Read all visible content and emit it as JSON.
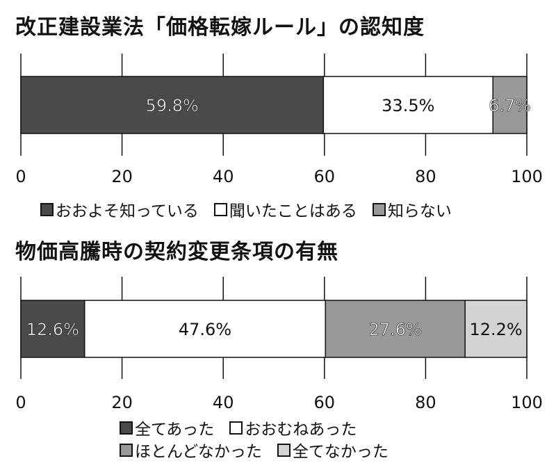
{
  "chart_data": [
    {
      "type": "bar",
      "stacked": "horizontal-100%",
      "title": "改正建設業法「価格転嫁ルール」の認知度",
      "xlim": [
        0,
        100
      ],
      "xticks": [
        "0",
        "20",
        "40",
        "60",
        "80",
        "100"
      ],
      "grid": true,
      "legend_position": "bottom",
      "series": [
        {
          "name": "おおよそ知っている",
          "value": 59.8,
          "label": "59.8%",
          "color": "#4a4a4a",
          "label_color": "#ffffff"
        },
        {
          "name": "聞いたことはある",
          "value": 33.5,
          "label": "33.5%",
          "color": "#ffffff",
          "label_color": "#111111"
        },
        {
          "name": "知らない",
          "value": 6.7,
          "label": "6.7%",
          "color": "#999999",
          "label_color": "#ffffff"
        }
      ]
    },
    {
      "type": "bar",
      "stacked": "horizontal-100%",
      "title": "物価高騰時の契約変更条項の有無",
      "xlim": [
        0,
        100
      ],
      "xticks": [
        "0",
        "20",
        "40",
        "60",
        "80",
        "100"
      ],
      "grid": true,
      "legend_position": "bottom",
      "series": [
        {
          "name": "全てあった",
          "value": 12.6,
          "label": "12.6%",
          "color": "#4a4a4a",
          "label_color": "#ffffff"
        },
        {
          "name": "おおむねあった",
          "value": 47.6,
          "label": "47.6%",
          "color": "#ffffff",
          "label_color": "#111111"
        },
        {
          "name": "ほとんどなかった",
          "value": 27.6,
          "label": "27.6%",
          "color": "#999999",
          "label_color": "#ffffff"
        },
        {
          "name": "全てなかった",
          "value": 12.2,
          "label": "12.2%",
          "color": "#d4d4d4",
          "label_color": "#111111"
        }
      ]
    }
  ]
}
